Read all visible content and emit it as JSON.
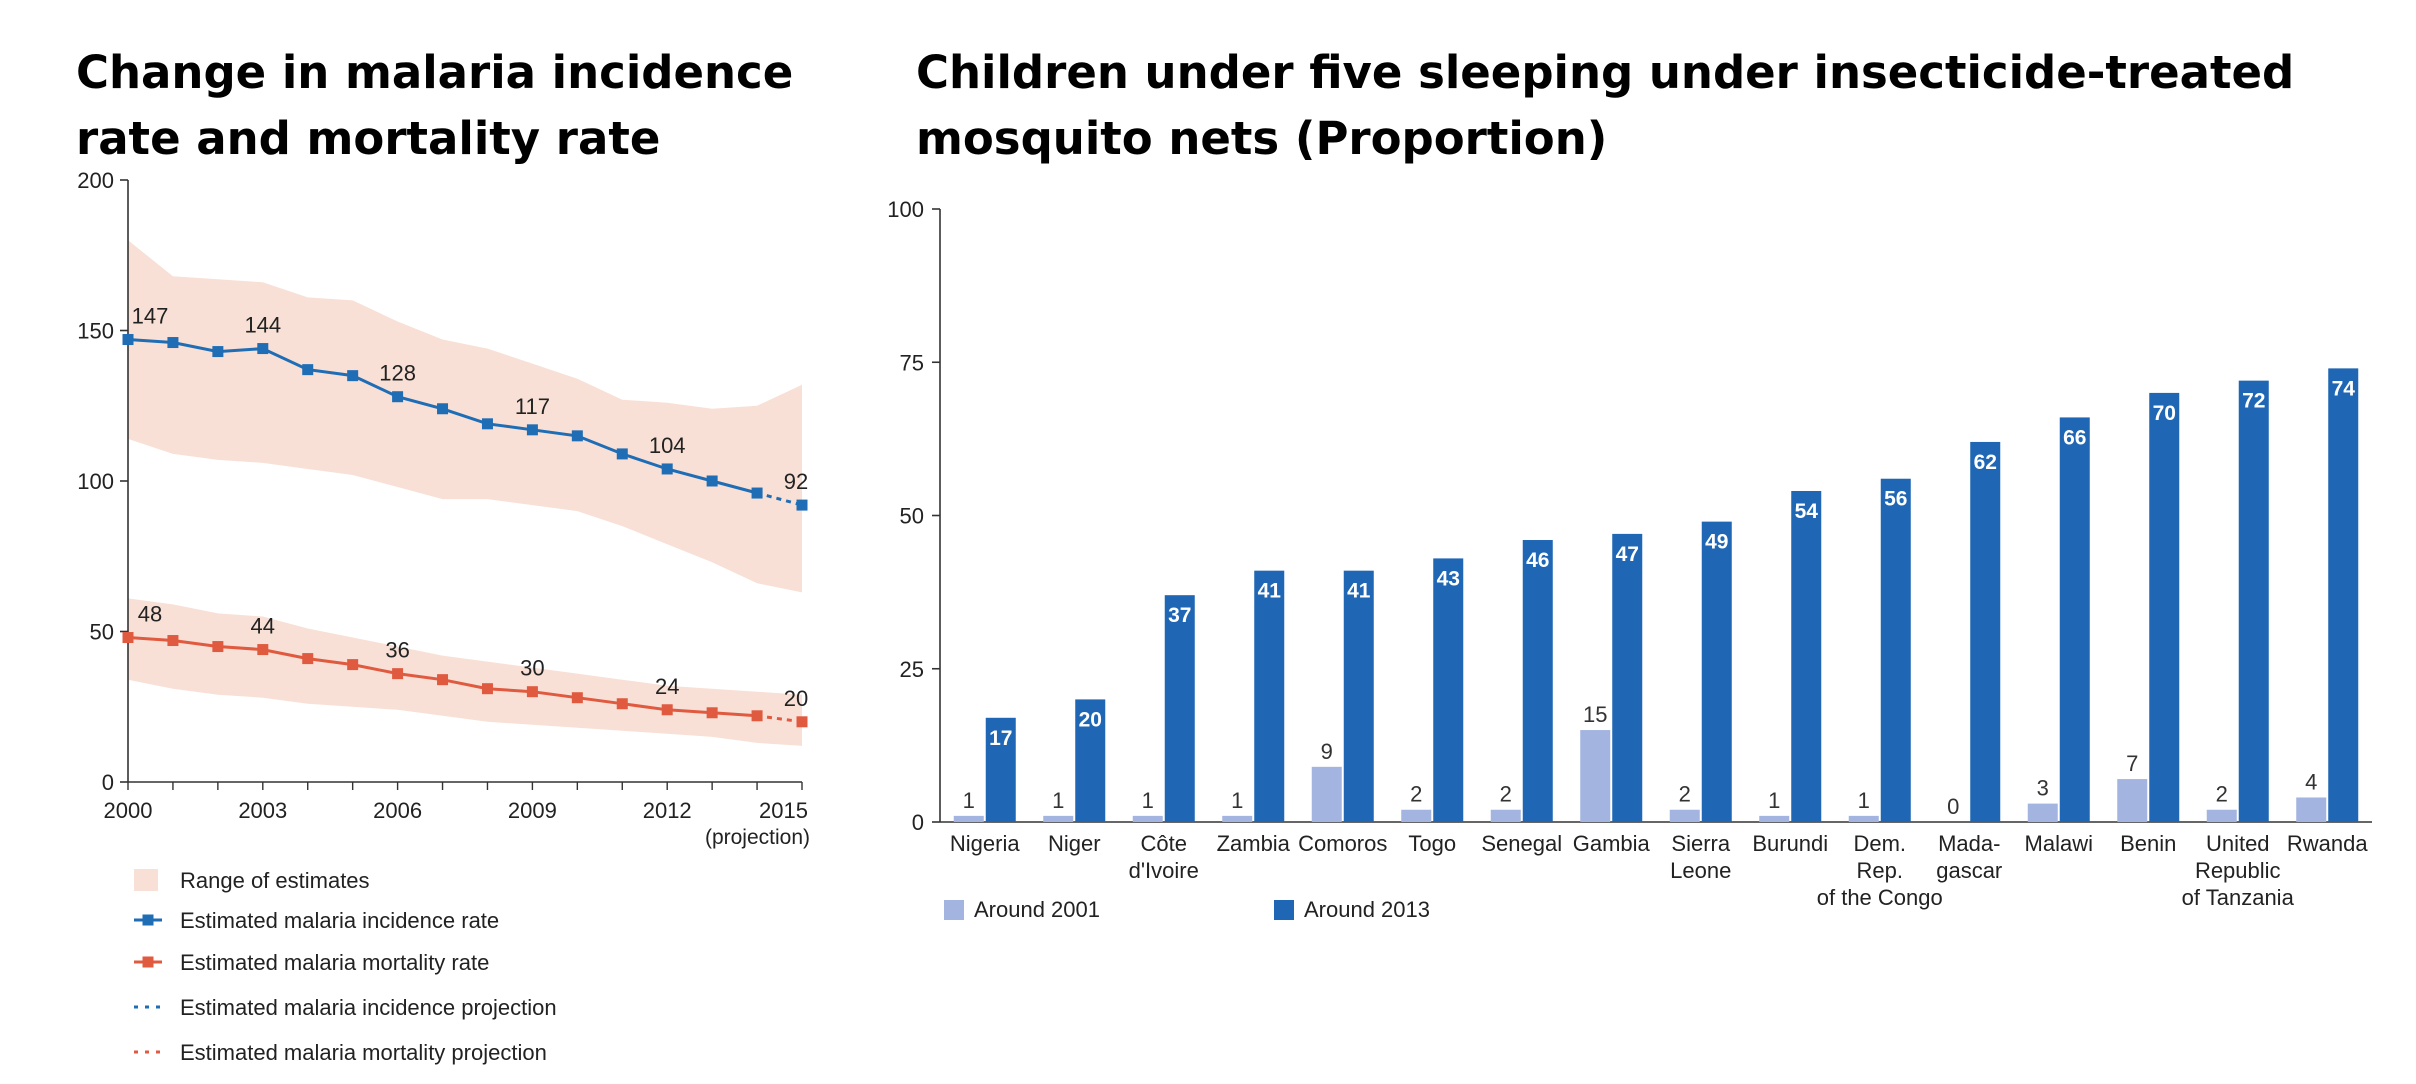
{
  "chart_data": [
    {
      "type": "line",
      "title": "Change in malaria incidence rate and mortality rate",
      "x": [
        2000,
        2001,
        2002,
        2003,
        2004,
        2005,
        2006,
        2007,
        2008,
        2009,
        2010,
        2011,
        2012,
        2013,
        2014,
        2015
      ],
      "x_ticks": [
        "2000",
        "2003",
        "2006",
        "2009",
        "2012",
        "2015"
      ],
      "x_tick_note": "(projection)",
      "ylim": [
        0,
        200
      ],
      "y_ticks": [
        "0",
        "50",
        "100",
        "150",
        "200"
      ],
      "series": [
        {
          "name": "Estimated malaria incidence rate",
          "color": "#1f6db5",
          "values": [
            147,
            146,
            143,
            144,
            137,
            135,
            128,
            124,
            119,
            117,
            115,
            109,
            104,
            100,
            96,
            92
          ],
          "projected_from_index": 14,
          "lower": [
            114,
            109,
            107,
            106,
            104,
            102,
            98,
            94,
            94,
            92,
            90,
            85,
            79,
            73,
            66,
            63
          ],
          "upper": [
            180,
            168,
            167,
            166,
            161,
            160,
            153,
            147,
            144,
            139,
            134,
            127,
            126,
            124,
            125,
            132
          ]
        },
        {
          "name": "Estimated malaria mortality rate",
          "color": "#e05a40",
          "values": [
            48,
            47,
            45,
            44,
            41,
            39,
            36,
            34,
            31,
            30,
            28,
            26,
            24,
            23,
            22,
            20
          ],
          "projected_from_index": 14,
          "lower": [
            34,
            31,
            29,
            28,
            26,
            25,
            24,
            22,
            20,
            19,
            18,
            17,
            16,
            15,
            13,
            12
          ],
          "upper": [
            61,
            59,
            56,
            55,
            51,
            48,
            45,
            42,
            40,
            38,
            36,
            34,
            32,
            31,
            30,
            29
          ]
        }
      ],
      "data_labels": [
        {
          "series": 0,
          "index": 0,
          "text": "147"
        },
        {
          "series": 0,
          "index": 3,
          "text": "144"
        },
        {
          "series": 0,
          "index": 6,
          "text": "128"
        },
        {
          "series": 0,
          "index": 9,
          "text": "117"
        },
        {
          "series": 0,
          "index": 12,
          "text": "104"
        },
        {
          "series": 0,
          "index": 15,
          "text": "92"
        },
        {
          "series": 1,
          "index": 0,
          "text": "48"
        },
        {
          "series": 1,
          "index": 3,
          "text": "44"
        },
        {
          "series": 1,
          "index": 6,
          "text": "36"
        },
        {
          "series": 1,
          "index": 9,
          "text": "30"
        },
        {
          "series": 1,
          "index": 12,
          "text": "24"
        },
        {
          "series": 1,
          "index": 15,
          "text": "20"
        }
      ],
      "legend": [
        {
          "label": "Range of estimates",
          "kind": "band",
          "color": "#f8e0d6"
        },
        {
          "label": "Estimated malaria incidence rate",
          "kind": "line-marker",
          "color": "#1f6db5"
        },
        {
          "label": "Estimated malaria mortality rate",
          "kind": "line-marker",
          "color": "#e05a40"
        },
        {
          "label": "Estimated malaria incidence projection",
          "kind": "dotted",
          "color": "#1f6db5"
        },
        {
          "label": "Estimated malaria mortality projection",
          "kind": "dotted",
          "color": "#e05a40"
        }
      ],
      "band_color": "#f8e0d6",
      "legend_placement": "bottom-left",
      "grid": false
    },
    {
      "type": "bar",
      "title": "Children under five sleeping under insecticide-treated mosquito nets (Proportion)",
      "categories": [
        [
          "Nigeria"
        ],
        [
          "Niger"
        ],
        [
          "Côte",
          "d'Ivoire"
        ],
        [
          "Zambia"
        ],
        [
          "Comoros"
        ],
        [
          "Togo"
        ],
        [
          "Senegal"
        ],
        [
          "Gambia"
        ],
        [
          "Sierra",
          "Leone"
        ],
        [
          "Burundi"
        ],
        [
          "Dem.",
          "Rep.",
          "of the Congo"
        ],
        [
          "Mada-",
          "gascar"
        ],
        [
          "Malawi"
        ],
        [
          "Benin"
        ],
        [
          "United",
          "Republic",
          "of Tanzania"
        ],
        [
          "Rwanda"
        ]
      ],
      "ylim": [
        0,
        100
      ],
      "y_ticks": [
        "0",
        "25",
        "50",
        "75",
        "100"
      ],
      "series": [
        {
          "name": "Around 2001",
          "color": "#a3b4e0",
          "label_position": "above",
          "values": [
            1,
            1,
            1,
            1,
            9,
            2,
            2,
            15,
            2,
            1,
            1,
            0,
            3,
            7,
            2,
            4
          ]
        },
        {
          "name": "Around 2013",
          "color": "#1f66b4",
          "label_position": "inside-top",
          "values": [
            17,
            20,
            37,
            41,
            41,
            43,
            46,
            47,
            49,
            54,
            56,
            62,
            66,
            70,
            72,
            74
          ]
        }
      ],
      "legend_placement": "bottom-left",
      "grid": false
    }
  ]
}
